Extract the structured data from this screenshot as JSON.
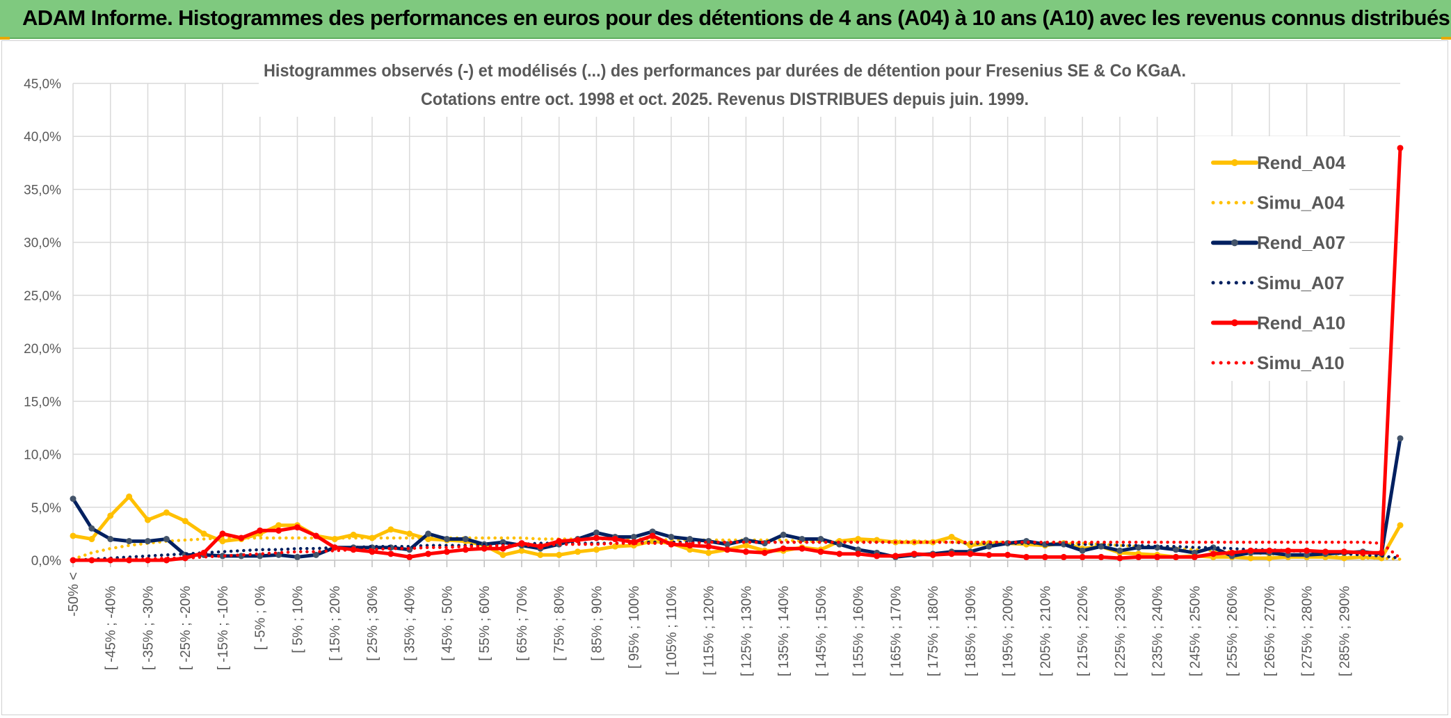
{
  "banner": {
    "title": "ADAM Informe. Histogrammes des performances en euros pour des détentions de 4 ans (A04) à 10 ans (A10) avec les revenus connus distribués",
    "color": "#7fc97f"
  },
  "chart_data": {
    "type": "line",
    "title_line1": "Histogrammes observés (-) et modélisés (...) des performances par durées de détention pour Fresenius SE & Co KGaA.",
    "title_line2": "Cotations entre oct. 1998 et oct. 2025. Revenus DISTRIBUES depuis juin. 1999.",
    "xlabel": "",
    "ylabel": "",
    "ylim": [
      0,
      45
    ],
    "yticks": [
      "0,0%",
      "5,0%",
      "10,0%",
      "15,0%",
      "20,0%",
      "25,0%",
      "30,0%",
      "35,0%",
      "40,0%",
      "45,0%"
    ],
    "grid": true,
    "legend_position": "top-right",
    "category_labels": [
      "-50% <",
      "[ -45% ; -40%",
      "[ -35% ; -30%",
      "[ -25% ; -20%",
      "[ -15% ; -10%",
      "[ -5% ; 0%",
      "[ 5% ; 10%",
      "[ 15% ; 20%",
      "[ 25% ; 30%",
      "[ 35% ; 40%",
      "[ 45% ; 50%",
      "[ 55% ; 60%",
      "[ 65% ; 70%",
      "[ 75% ; 80%",
      "[ 85% ; 90%",
      "[ 95% ; 100%",
      "[ 105% ; 110%",
      "[ 115% ; 120%",
      "[ 125% ; 130%",
      "[ 135% ; 140%",
      "[ 145% ; 150%",
      "[ 155% ; 160%",
      "[ 165% ; 170%",
      "[ 175% ; 180%",
      "[ 185% ; 190%",
      "[ 195% ; 200%",
      "[ 205% ; 210%",
      "[ 215% ; 220%",
      "[ 225% ; 230%",
      "[ 235% ; 240%",
      "[ 245% ; 250%",
      "[ 255% ; 260%",
      "[ 265% ; 270%",
      "[ 275% ; 280%",
      "[ 285% ; 290%"
    ],
    "series": [
      {
        "name": "Rend_A04",
        "color": "#ffc000",
        "style": "solid",
        "markers": true,
        "values": [
          2.3,
          2.0,
          4.2,
          6.0,
          3.8,
          4.5,
          3.7,
          2.5,
          1.8,
          2.0,
          2.5,
          3.3,
          3.3,
          2.3,
          2.0,
          2.4,
          2.1,
          2.9,
          2.5,
          2.0,
          1.9,
          1.8,
          1.4,
          0.5,
          0.9,
          0.5,
          0.5,
          0.8,
          1.0,
          1.3,
          1.4,
          1.8,
          1.6,
          1.0,
          0.7,
          1.0,
          1.4,
          0.9,
          0.9,
          1.2,
          1.0,
          1.8,
          2.0,
          1.9,
          1.7,
          1.7,
          1.7,
          2.2,
          1.4,
          1.6,
          1.6,
          1.5,
          1.4,
          1.6,
          1.1,
          1.3,
          0.7,
          0.6,
          0.5,
          0.3,
          0.4,
          0.3,
          0.3,
          0.2,
          0.2,
          0.3,
          0.3,
          0.3,
          0.2,
          0.3,
          0.2,
          3.3
        ]
      },
      {
        "name": "Simu_A04",
        "color": "#ffc000",
        "style": "dotted",
        "markers": false,
        "values": [
          0.1,
          0.7,
          1.1,
          1.4,
          1.6,
          1.8,
          1.9,
          2.0,
          2.1,
          2.1,
          2.1,
          2.1,
          2.1,
          2.1,
          2.1,
          2.1,
          2.1,
          2.1,
          2.1,
          2.1,
          2.1,
          2.1,
          2.1,
          2.1,
          2.1,
          2.0,
          2.0,
          2.0,
          2.0,
          2.0,
          2.0,
          2.0,
          1.9,
          1.9,
          1.9,
          1.9,
          1.9,
          1.9,
          1.9,
          1.8,
          1.8,
          1.8,
          1.8,
          1.8,
          1.8,
          1.8,
          1.8,
          1.7,
          1.7,
          1.7,
          1.7,
          1.7,
          1.6,
          1.6,
          1.6,
          1.5,
          1.4,
          1.3,
          1.2,
          1.1,
          1.0,
          0.9,
          0.8,
          0.7,
          0.6,
          0.5,
          0.5,
          0.4,
          0.3,
          0.2,
          0.2,
          0.1
        ]
      },
      {
        "name": "Rend_A07",
        "color": "#002060",
        "style": "solid",
        "markers": true,
        "values": [
          5.8,
          3.0,
          2.0,
          1.8,
          1.8,
          2.0,
          0.5,
          0.5,
          0.4,
          0.4,
          0.4,
          0.5,
          0.3,
          0.5,
          1.2,
          1.2,
          1.2,
          1.2,
          1.0,
          2.5,
          2.0,
          2.0,
          1.5,
          1.7,
          1.4,
          1.1,
          1.5,
          2.0,
          2.6,
          2.2,
          2.2,
          2.7,
          2.2,
          2.0,
          1.8,
          1.5,
          1.9,
          1.6,
          2.4,
          2.0,
          2.0,
          1.5,
          1.0,
          0.7,
          0.3,
          0.5,
          0.6,
          0.8,
          0.8,
          1.3,
          1.6,
          1.8,
          1.5,
          1.5,
          0.9,
          1.3,
          0.9,
          1.2,
          1.2,
          1.0,
          0.7,
          1.2,
          0.4,
          0.7,
          0.7,
          0.5,
          0.5,
          0.6,
          0.7,
          0.8,
          0.6,
          11.5
        ]
      },
      {
        "name": "Simu_A07",
        "color": "#002060",
        "style": "dotted",
        "markers": false,
        "values": [
          0.0,
          0.1,
          0.2,
          0.3,
          0.4,
          0.5,
          0.6,
          0.7,
          0.8,
          0.9,
          1.0,
          1.0,
          1.1,
          1.1,
          1.2,
          1.2,
          1.3,
          1.3,
          1.3,
          1.4,
          1.4,
          1.4,
          1.5,
          1.5,
          1.5,
          1.6,
          1.6,
          1.6,
          1.6,
          1.6,
          1.7,
          1.7,
          1.7,
          1.7,
          1.7,
          1.7,
          1.7,
          1.7,
          1.7,
          1.7,
          1.7,
          1.7,
          1.7,
          1.7,
          1.7,
          1.7,
          1.7,
          1.7,
          1.6,
          1.6,
          1.6,
          1.6,
          1.6,
          1.5,
          1.5,
          1.5,
          1.4,
          1.4,
          1.3,
          1.3,
          1.2,
          1.2,
          1.1,
          1.0,
          1.0,
          0.9,
          0.8,
          0.7,
          0.6,
          0.5,
          0.4,
          0.2
        ]
      },
      {
        "name": "Rend_A10",
        "color": "#ff0000",
        "style": "solid",
        "markers": true,
        "values": [
          0.0,
          0.0,
          0.0,
          0.0,
          0.0,
          0.0,
          0.2,
          0.7,
          2.5,
          2.1,
          2.8,
          2.8,
          3.1,
          2.3,
          1.2,
          1.0,
          0.8,
          0.6,
          0.3,
          0.6,
          0.8,
          1.0,
          1.1,
          1.1,
          1.6,
          1.3,
          1.8,
          1.9,
          2.1,
          2.0,
          1.7,
          2.3,
          1.5,
          1.4,
          1.3,
          1.0,
          0.8,
          0.7,
          1.1,
          1.1,
          0.8,
          0.6,
          0.6,
          0.4,
          0.4,
          0.6,
          0.5,
          0.6,
          0.6,
          0.5,
          0.5,
          0.3,
          0.3,
          0.3,
          0.3,
          0.3,
          0.2,
          0.3,
          0.3,
          0.3,
          0.3,
          0.6,
          0.7,
          0.9,
          0.9,
          0.9,
          0.9,
          0.8,
          0.8,
          0.7,
          0.7,
          38.9
        ]
      },
      {
        "name": "Simu_A10",
        "color": "#ff0000",
        "style": "dotted",
        "markers": false,
        "values": [
          0.0,
          0.0,
          0.0,
          0.1,
          0.1,
          0.2,
          0.2,
          0.3,
          0.4,
          0.5,
          0.6,
          0.7,
          0.8,
          0.8,
          0.9,
          1.0,
          1.0,
          1.1,
          1.1,
          1.2,
          1.2,
          1.3,
          1.3,
          1.4,
          1.4,
          1.4,
          1.5,
          1.5,
          1.5,
          1.6,
          1.6,
          1.6,
          1.6,
          1.6,
          1.7,
          1.7,
          1.7,
          1.7,
          1.7,
          1.7,
          1.7,
          1.7,
          1.7,
          1.7,
          1.7,
          1.7,
          1.7,
          1.7,
          1.7,
          1.7,
          1.7,
          1.7,
          1.7,
          1.7,
          1.7,
          1.7,
          1.7,
          1.7,
          1.7,
          1.7,
          1.7,
          1.7,
          1.7,
          1.7,
          1.7,
          1.7,
          1.7,
          1.7,
          1.7,
          1.7,
          1.6,
          0.2
        ]
      }
    ]
  }
}
